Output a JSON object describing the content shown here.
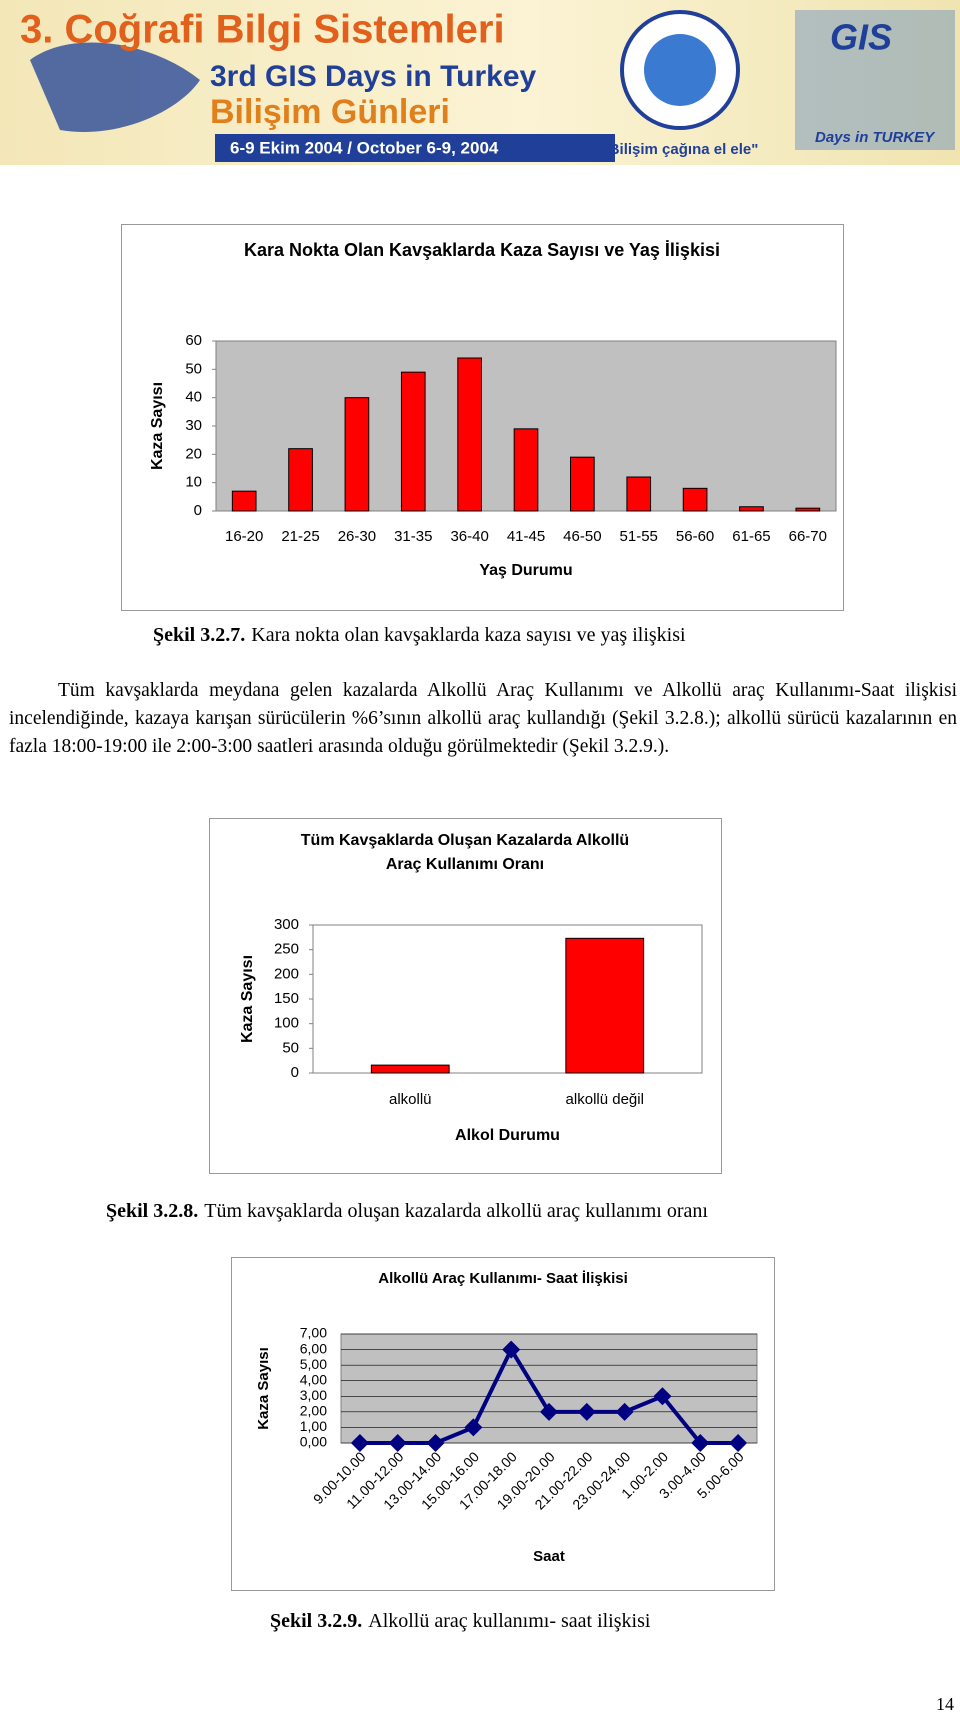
{
  "header": {
    "title": "3. Coğrafi Bilgi Sistemleri",
    "subtitle": "3rd GIS Days in Turkey",
    "subtitle2": "Bilişim Günleri",
    "date": "6-9 Ekim 2004 / October 6-9, 2004",
    "slogan": "\"Bilişim çağına el ele\"",
    "logo": "GIS",
    "logo_sub": "Days in TURKEY"
  },
  "chart_data": [
    {
      "type": "bar",
      "title": "Kara Nokta Olan Kavşaklarda Kaza Sayısı ve Yaş İlişkisi",
      "x_label": "Yaş Durumu",
      "y_label": "Kaza Sayısı",
      "categories": [
        "16-20",
        "21-25",
        "26-30",
        "31-35",
        "36-40",
        "41-45",
        "46-50",
        "51-55",
        "56-60",
        "61-65",
        "66-70"
      ],
      "values": [
        7,
        22,
        40,
        49,
        54,
        29,
        19,
        12,
        8,
        1.5,
        1
      ],
      "color": "#ff0000",
      "ylim": [
        0,
        60
      ],
      "yticks": [
        0,
        10,
        20,
        30,
        40,
        50,
        60
      ],
      "grid": false
    },
    {
      "type": "bar",
      "title": "Tüm Kavşaklarda Oluşan Kazalarda Alkollü Araç Kullanımı Oranı",
      "x_label": "Alkol Durumu",
      "y_label": "Kaza Sayısı",
      "categories": [
        "alkollü",
        "alkollü değil"
      ],
      "values": [
        16,
        273
      ],
      "color": "#ff0000",
      "ylim": [
        0,
        300
      ],
      "yticks": [
        0,
        50,
        100,
        150,
        200,
        250,
        300
      ],
      "grid": false
    },
    {
      "type": "line",
      "title": "Alkollü Araç Kullanımı- Saat İlişkisi",
      "x_label": "Saat",
      "y_label": "Kaza Sayısı",
      "categories": [
        "9.00-10.00",
        "11.00-12.00",
        "13.00-14.00",
        "15.00-16.00",
        "17.00-18.00",
        "19.00-20.00",
        "21.00-22.00",
        "23.00-24.00",
        "1.00-2.00",
        "3.00-4.00",
        "5.00-6.00"
      ],
      "values": [
        0,
        0,
        0,
        1,
        6,
        2,
        2,
        2,
        3,
        0,
        0
      ],
      "color": "#000080",
      "ylim": [
        0,
        7
      ],
      "yticks": [
        {
          "value": 0,
          "label": "0,00"
        },
        {
          "value": 1,
          "label": "1,00"
        },
        {
          "value": 2,
          "label": "2,00"
        },
        {
          "value": 3,
          "label": "3,00"
        },
        {
          "value": 4,
          "label": "4,00"
        },
        {
          "value": 5,
          "label": "5,00"
        },
        {
          "value": 6,
          "label": "6,00"
        },
        {
          "value": 7,
          "label": "7,00"
        }
      ],
      "grid": true
    }
  ],
  "captions": [
    {
      "label": "Şekil 3.2.7.",
      "text": "Kara nokta olan kavşaklarda kaza sayısı ve yaş ilişkisi"
    },
    {
      "label": "Şekil 3.2.8.",
      "text": "Tüm kavşaklarda oluşan kazalarda alkollü araç kullanımı oranı"
    },
    {
      "label": "Şekil 3.2.9.",
      "text": "Alkollü araç kullanımı- saat ilişkisi"
    }
  ],
  "paragraph": "Tüm kavşaklarda meydana gelen kazalarda Alkollü Araç Kullanımı ve Alkollü araç Kullanımı-Saat ilişkisi incelendiğinde, kazaya karışan sürücülerin %6’sının alkollü araç kullandığı (Şekil 3.2.8.); alkollü sürücü kazalarının en fazla 18:00-19:00 ile 2:00-3:00 saatleri arasında olduğu görülmektedir (Şekil 3.2.9.).",
  "page_number": "14"
}
